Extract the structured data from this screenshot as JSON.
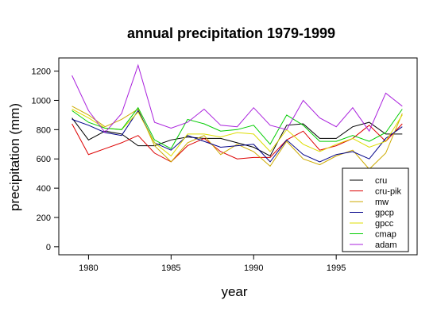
{
  "chart_data": {
    "type": "line",
    "title": "annual precipitation 1979-1999",
    "xlabel": "year",
    "ylabel": "precipitation (mm)",
    "xlim": [
      1978.2,
      1999.9
    ],
    "ylim": [
      -55,
      1290
    ],
    "x_ticks": [
      1980,
      1985,
      1990,
      1995
    ],
    "y_ticks": [
      0,
      200,
      400,
      600,
      800,
      1000,
      1200
    ],
    "grid": false,
    "legend_position": "bottom-right",
    "x": [
      1979,
      1980,
      1981,
      1982,
      1983,
      1984,
      1985,
      1986,
      1987,
      1988,
      1989,
      1990,
      1991,
      1992,
      1993,
      1994,
      1995,
      1996,
      1997,
      1998,
      1999
    ],
    "series": [
      {
        "name": "cru",
        "color": "#000000",
        "values": [
          880,
          730,
          790,
          770,
          690,
          690,
          730,
          750,
          740,
          740,
          710,
          680,
          620,
          830,
          840,
          740,
          740,
          820,
          850,
          770,
          770
        ]
      },
      {
        "name": "cru-pik",
        "color": "#dd0000",
        "values": [
          840,
          630,
          670,
          710,
          760,
          640,
          580,
          690,
          740,
          650,
          600,
          610,
          610,
          730,
          790,
          660,
          690,
          740,
          830,
          720,
          840
        ]
      },
      {
        "name": "mw",
        "color": "#ccaa00",
        "values": [
          960,
          900,
          820,
          870,
          940,
          690,
          580,
          710,
          760,
          630,
          700,
          650,
          550,
          720,
          600,
          560,
          620,
          660,
          530,
          640,
          910
        ]
      },
      {
        "name": "gpcp",
        "color": "#000088",
        "values": [
          870,
          830,
          780,
          760,
          930,
          710,
          660,
          760,
          720,
          680,
          690,
          700,
          580,
          730,
          630,
          580,
          630,
          650,
          600,
          740,
          820
        ]
      },
      {
        "name": "gpcc",
        "color": "#dddd00",
        "values": [
          940,
          880,
          810,
          800,
          920,
          710,
          620,
          770,
          770,
          750,
          780,
          770,
          650,
          800,
          700,
          650,
          700,
          740,
          680,
          720,
          900
        ]
      },
      {
        "name": "cmap",
        "color": "#00cc00",
        "values": [
          930,
          850,
          810,
          800,
          950,
          730,
          670,
          870,
          840,
          790,
          800,
          830,
          700,
          900,
          830,
          720,
          720,
          760,
          720,
          780,
          940
        ]
      },
      {
        "name": "adam",
        "color": "#aa22dd",
        "values": [
          1170,
          930,
          780,
          910,
          1240,
          850,
          810,
          850,
          940,
          830,
          820,
          950,
          830,
          800,
          1000,
          880,
          820,
          950,
          790,
          1050,
          960
        ]
      }
    ]
  }
}
